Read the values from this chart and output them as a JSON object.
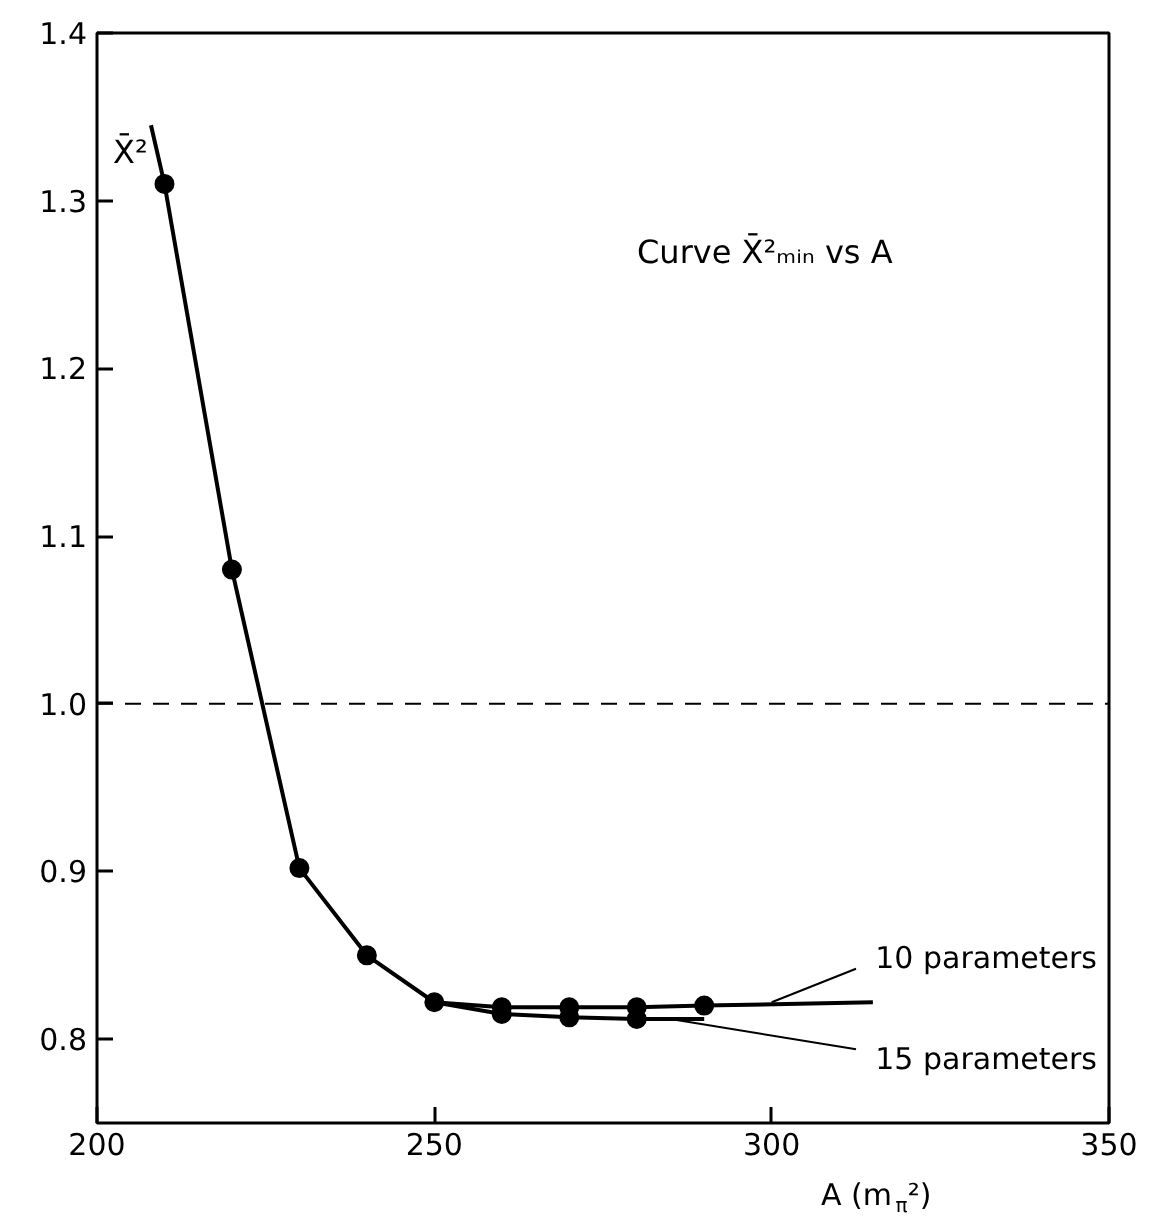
{
  "chart_data": {
    "type": "line",
    "title": "Curve X̄²ₘᵢₙ vs A",
    "ylabel": "X̄²",
    "xlabel": "A (m$_{π}$²)",
    "xlim": [
      200,
      350
    ],
    "xticks": [
      200,
      250,
      300,
      350
    ],
    "ylim": [
      0.75,
      1.4
    ],
    "yticks": [
      {
        "value": 0.8,
        "label": "0.8"
      },
      {
        "value": 0.9,
        "label": "0.9"
      },
      {
        "value": 1.0,
        "label": "1.0"
      },
      {
        "value": 1.1,
        "label": "1.1"
      },
      {
        "value": 1.2,
        "label": "1.2"
      },
      {
        "value": 1.3,
        "label": "1.3"
      },
      {
        "value": 1.4,
        "label": "1.4"
      }
    ],
    "grid": false,
    "line_style": "solid",
    "ref_lines": [
      {
        "axis": "y",
        "value": 1.0,
        "line_style": "dashed"
      }
    ],
    "series": [
      {
        "name": "10 parameters",
        "type": "line",
        "color": "#000000",
        "marker": "none",
        "x": [
          208,
          210,
          220,
          230,
          240,
          250,
          260,
          270,
          280,
          290,
          315
        ],
        "values": [
          1.345,
          1.31,
          1.08,
          0.902,
          0.85,
          0.822,
          0.819,
          0.819,
          0.819,
          0.82,
          0.822
        ]
      },
      {
        "name": "15 parameters",
        "type": "line",
        "color": "#000000",
        "marker": "none",
        "x": [
          250,
          260,
          270,
          280,
          290
        ],
        "values": [
          0.822,
          0.815,
          0.813,
          0.812,
          0.812
        ]
      },
      {
        "type": "scatter",
        "color": "#000000",
        "marker": "circle",
        "x": [
          210,
          220,
          230,
          240,
          250,
          260,
          270,
          280,
          290
        ],
        "values": [
          1.31,
          1.08,
          0.902,
          0.85,
          0.822,
          0.819,
          0.819,
          0.819,
          0.82
        ]
      },
      {
        "type": "scatter",
        "color": "#000000",
        "marker": "circle",
        "x": [
          260,
          270,
          280
        ],
        "values": [
          0.815,
          0.813,
          0.812
        ]
      }
    ]
  }
}
